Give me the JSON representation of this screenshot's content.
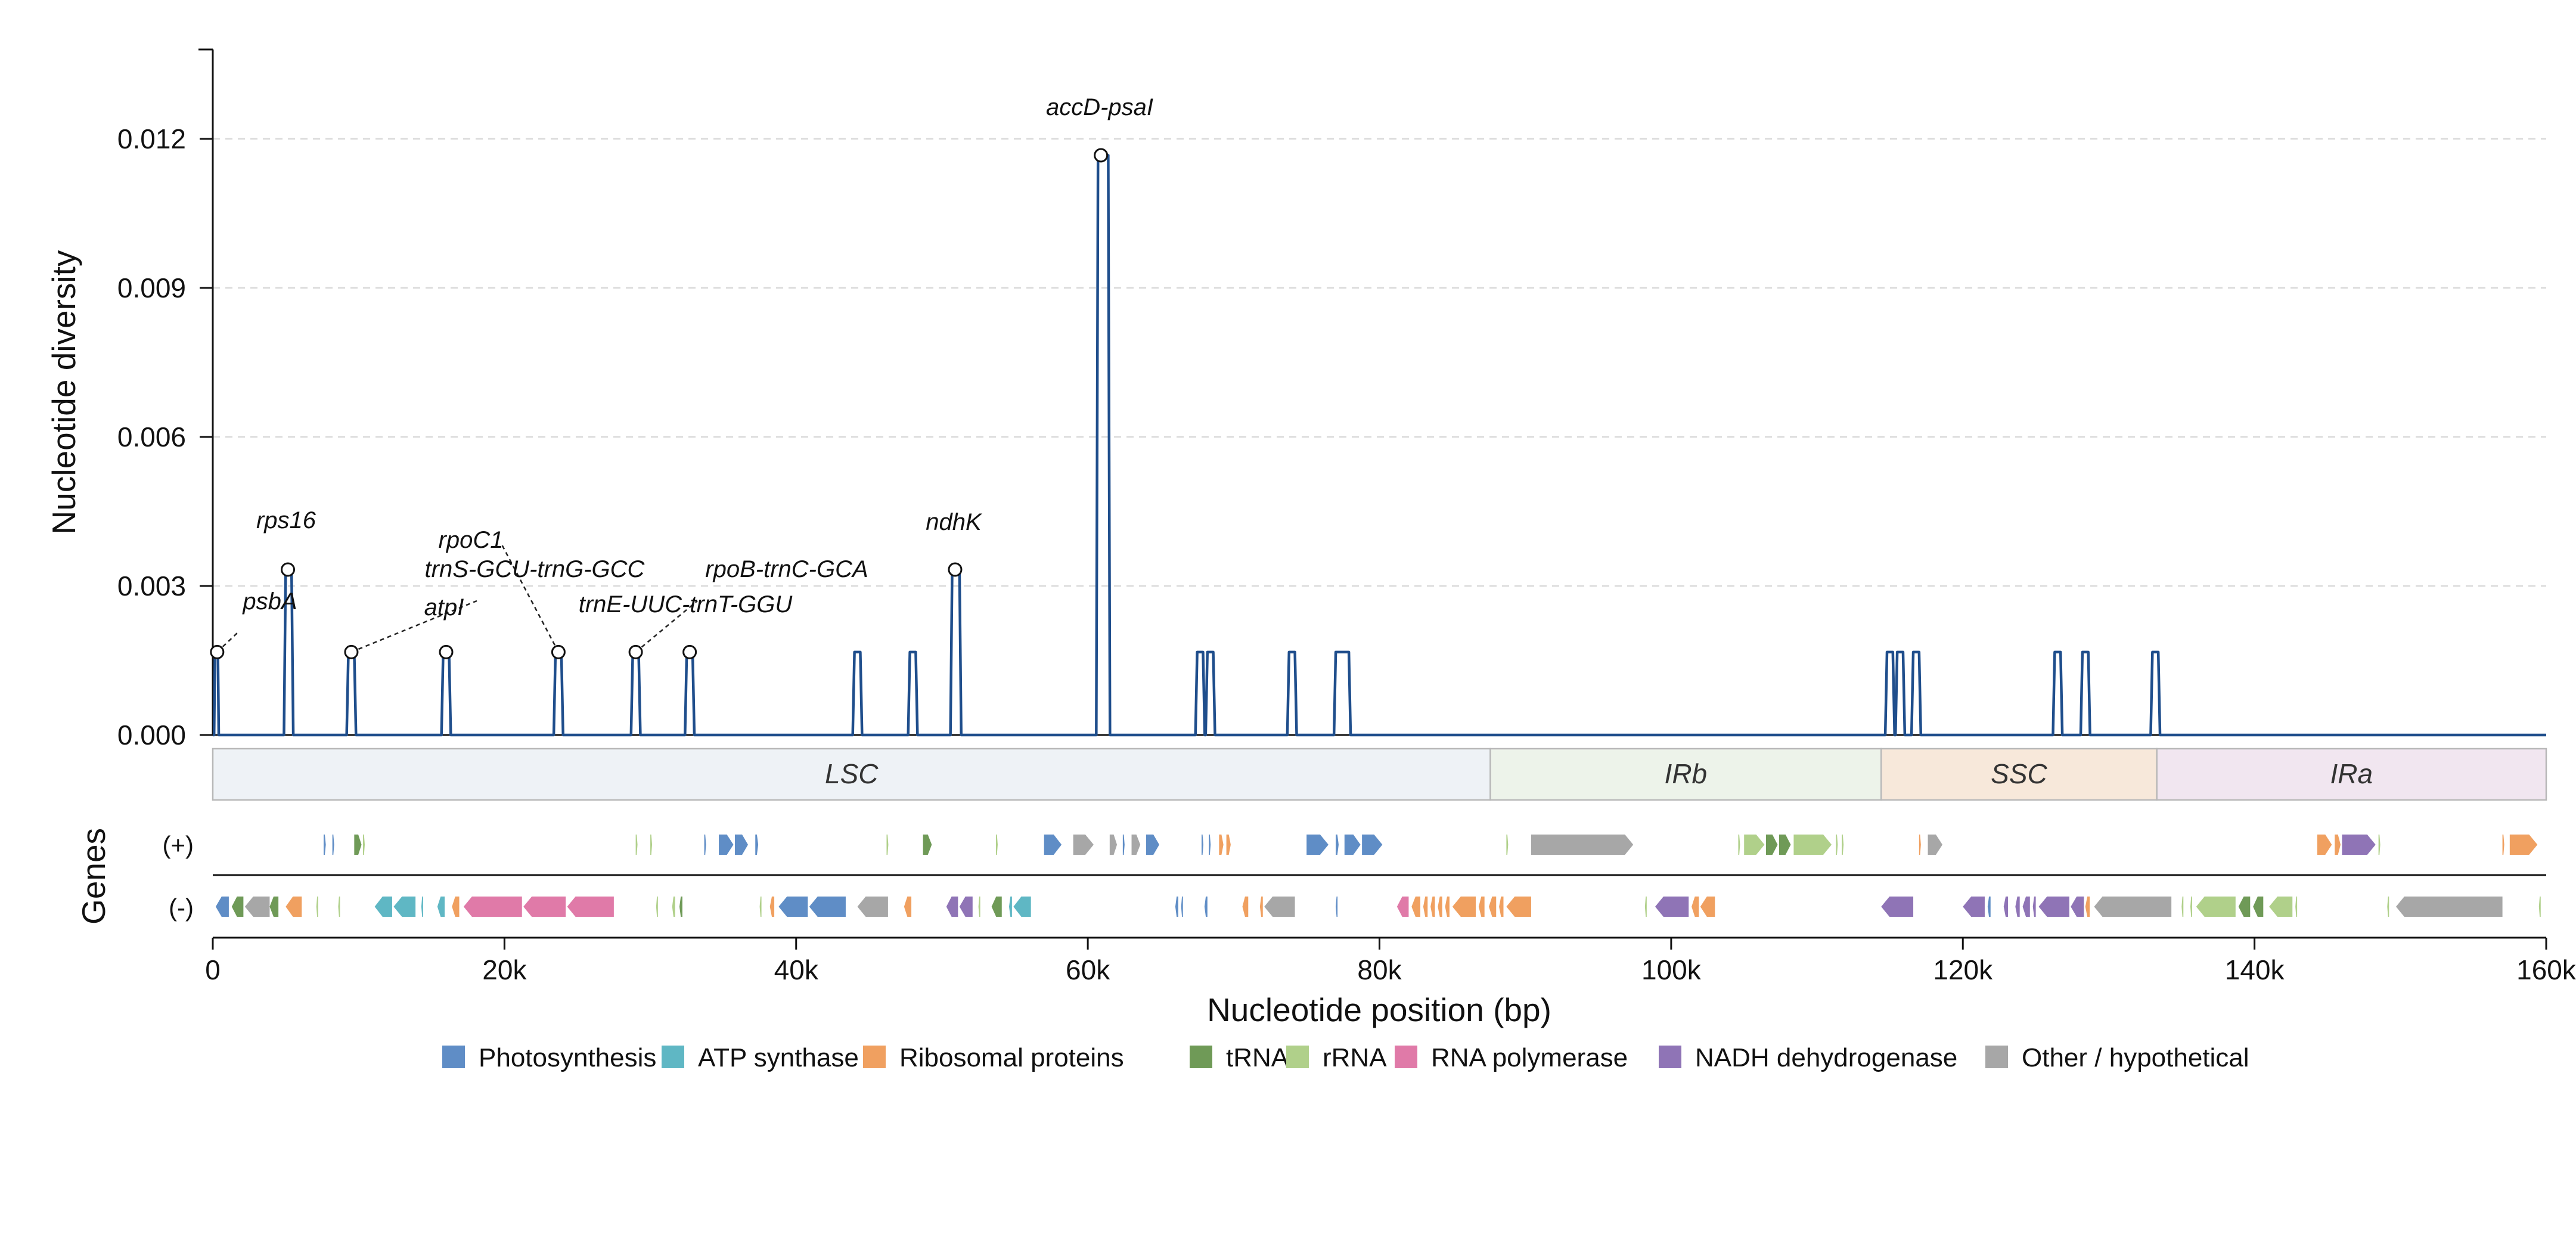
{
  "chart_data": {
    "type": "line",
    "ylabel": "Nucleotide diversity",
    "xlabel": "Nucleotide position (bp)",
    "genes_label": "Genes",
    "strand_labels": [
      "(+)",
      "(-)"
    ],
    "xlim": [
      0,
      160000
    ],
    "ylim": [
      0,
      0.0138
    ],
    "grid": "horizontal dashed",
    "x_ticks": [
      0,
      20000,
      40000,
      60000,
      80000,
      100000,
      120000,
      140000,
      160000
    ],
    "x_tick_labels": [
      "0",
      "20k",
      "40k",
      "60k",
      "80k",
      "100k",
      "120k",
      "140k",
      "160k"
    ],
    "y_ticks": [
      0,
      0.003,
      0.006,
      0.009,
      0.012
    ],
    "y_tick_labels": [
      "0.000",
      "0.003",
      "0.006",
      "0.009",
      "0.012"
    ],
    "series": [
      {
        "color": "#1f4e8c",
        "peaks": [
          {
            "start": 150,
            "end": 350,
            "value": 0.00167
          },
          {
            "start": 5000,
            "end": 5400,
            "value": 0.00333
          },
          {
            "start": 9300,
            "end": 9700,
            "value": 0.00167
          },
          {
            "start": 15800,
            "end": 16200,
            "value": 0.00167
          },
          {
            "start": 23500,
            "end": 23900,
            "value": 0.00167
          },
          {
            "start": 28800,
            "end": 29200,
            "value": 0.00167
          },
          {
            "start": 32500,
            "end": 32900,
            "value": 0.00167
          },
          {
            "start": 44000,
            "end": 44400,
            "value": 0.00167
          },
          {
            "start": 47800,
            "end": 48200,
            "value": 0.00167
          },
          {
            "start": 50700,
            "end": 51200,
            "value": 0.00333
          },
          {
            "start": 60700,
            "end": 61400,
            "value": 0.01167
          },
          {
            "start": 67500,
            "end": 67900,
            "value": 0.00167
          },
          {
            "start": 68200,
            "end": 68600,
            "value": 0.00167
          },
          {
            "start": 73800,
            "end": 74200,
            "value": 0.00167
          },
          {
            "start": 77000,
            "end": 77900,
            "value": 0.00167
          },
          {
            "start": 114800,
            "end": 115200,
            "value": 0.00167
          },
          {
            "start": 115500,
            "end": 115900,
            "value": 0.00167
          },
          {
            "start": 116600,
            "end": 117000,
            "value": 0.00167
          },
          {
            "start": 126300,
            "end": 126700,
            "value": 0.00167
          },
          {
            "start": 128200,
            "end": 128600,
            "value": 0.00167
          },
          {
            "start": 133000,
            "end": 133400,
            "value": 0.00167
          }
        ]
      }
    ],
    "annotations": [
      {
        "label": "psbA",
        "x": 300,
        "y": 0.00167,
        "italic": true
      },
      {
        "label": "rps16",
        "x": 5150,
        "y": 0.00333,
        "italic": true
      },
      {
        "label": "atpI",
        "x": 9500,
        "y": 0.00167,
        "italic": true
      },
      {
        "label": "rpoC1",
        "x": 16000,
        "y": 0.00167,
        "italic": true
      },
      {
        "label": "trnS-GCU-trnG-GCC",
        "x": 23700,
        "y": 0.00167,
        "italic": true
      },
      {
        "label": "trnE-UUC-trnT-GGU",
        "x": 29000,
        "y": 0.00167,
        "italic": true
      },
      {
        "label": "rpoB-trnC-GCA",
        "x": 32700,
        "y": 0.00167,
        "italic": true
      },
      {
        "label": "ndhK",
        "x": 50900,
        "y": 0.00333,
        "italic": true
      },
      {
        "label": "accD-psaI",
        "x": 60900,
        "y": 0.01167,
        "italic": true
      }
    ],
    "regions": [
      {
        "label": "LSC",
        "start": 0,
        "end": 87600,
        "color": "#eef2f6"
      },
      {
        "label": "IRb",
        "start": 87600,
        "end": 114400,
        "color": "#edf3ea"
      },
      {
        "label": "SSC",
        "start": 114400,
        "end": 133300,
        "color": "#f7e8da"
      },
      {
        "label": "IRa",
        "start": 133300,
        "end": 160000,
        "color": "#f1e6f0"
      }
    ],
    "gene_categories": [
      {
        "name": "Photosynthesis",
        "color": "#5f8dc6"
      },
      {
        "name": "ATP synthase",
        "color": "#5fb7c4"
      },
      {
        "name": "Ribosomal proteins",
        "color": "#f0a060"
      },
      {
        "name": "tRNA",
        "color": "#6f9a57"
      },
      {
        "name": "rRNA",
        "color": "#b0d08a"
      },
      {
        "name": "RNA polymerase",
        "color": "#e07aa8"
      },
      {
        "name": "NADH dehydrogenase",
        "color": "#8f74b6"
      },
      {
        "name": "Other / hypothetical",
        "color": "#a7a7a7"
      }
    ],
    "genes_plus": [
      {
        "start": 7600,
        "end": 7750,
        "cat": 0
      },
      {
        "start": 8200,
        "end": 8300,
        "cat": 0
      },
      {
        "start": 9700,
        "end": 10200,
        "cat": 3
      },
      {
        "start": 10300,
        "end": 10400,
        "cat": 4
      },
      {
        "start": 29000,
        "end": 29100,
        "cat": 4
      },
      {
        "start": 30000,
        "end": 30100,
        "cat": 4
      },
      {
        "start": 33700,
        "end": 33800,
        "cat": 0
      },
      {
        "start": 34700,
        "end": 35700,
        "cat": 0
      },
      {
        "start": 35800,
        "end": 36700,
        "cat": 0
      },
      {
        "start": 37200,
        "end": 37400,
        "cat": 0
      },
      {
        "start": 46200,
        "end": 46300,
        "cat": 4
      },
      {
        "start": 48700,
        "end": 49300,
        "cat": 3
      },
      {
        "start": 53700,
        "end": 53800,
        "cat": 4
      },
      {
        "start": 57000,
        "end": 58200,
        "cat": 0
      },
      {
        "start": 59000,
        "end": 60400,
        "cat": 7
      },
      {
        "start": 61500,
        "end": 62000,
        "cat": 7
      },
      {
        "start": 62400,
        "end": 62500,
        "cat": 0
      },
      {
        "start": 63000,
        "end": 63600,
        "cat": 7
      },
      {
        "start": 64000,
        "end": 64900,
        "cat": 0
      },
      {
        "start": 67800,
        "end": 67900,
        "cat": 0
      },
      {
        "start": 68300,
        "end": 68400,
        "cat": 0
      },
      {
        "start": 69000,
        "end": 69300,
        "cat": 2
      },
      {
        "start": 69500,
        "end": 69800,
        "cat": 2
      },
      {
        "start": 75000,
        "end": 76500,
        "cat": 0
      },
      {
        "start": 77000,
        "end": 77200,
        "cat": 0
      },
      {
        "start": 77600,
        "end": 78700,
        "cat": 0
      },
      {
        "start": 78800,
        "end": 80200,
        "cat": 0
      },
      {
        "start": 88700,
        "end": 88800,
        "cat": 4
      },
      {
        "start": 90400,
        "end": 97400,
        "cat": 7
      },
      {
        "start": 104600,
        "end": 104700,
        "cat": 4
      },
      {
        "start": 105000,
        "end": 106400,
        "cat": 4
      },
      {
        "start": 106500,
        "end": 107300,
        "cat": 3
      },
      {
        "start": 107400,
        "end": 108200,
        "cat": 3
      },
      {
        "start": 108400,
        "end": 111000,
        "cat": 4
      },
      {
        "start": 111300,
        "end": 111400,
        "cat": 4
      },
      {
        "start": 111700,
        "end": 111800,
        "cat": 4
      },
      {
        "start": 117000,
        "end": 117100,
        "cat": 2
      },
      {
        "start": 117600,
        "end": 118600,
        "cat": 7
      },
      {
        "start": 144300,
        "end": 145300,
        "cat": 2
      },
      {
        "start": 145500,
        "end": 145900,
        "cat": 2
      },
      {
        "start": 146000,
        "end": 148300,
        "cat": 6
      },
      {
        "start": 148500,
        "end": 148600,
        "cat": 4
      },
      {
        "start": 157000,
        "end": 157100,
        "cat": 2
      },
      {
        "start": 157500,
        "end": 159400,
        "cat": 2
      }
    ],
    "genes_minus": [
      {
        "start": 200,
        "end": 1100,
        "cat": 0
      },
      {
        "start": 1300,
        "end": 2100,
        "cat": 3
      },
      {
        "start": 2200,
        "end": 3900,
        "cat": 7
      },
      {
        "start": 3900,
        "end": 4500,
        "cat": 3
      },
      {
        "start": 5000,
        "end": 6100,
        "cat": 2
      },
      {
        "start": 7100,
        "end": 7200,
        "cat": 4
      },
      {
        "start": 8600,
        "end": 8700,
        "cat": 4
      },
      {
        "start": 11100,
        "end": 12300,
        "cat": 1
      },
      {
        "start": 12400,
        "end": 13900,
        "cat": 1
      },
      {
        "start": 14300,
        "end": 14400,
        "cat": 1
      },
      {
        "start": 15400,
        "end": 15900,
        "cat": 1
      },
      {
        "start": 16400,
        "end": 16900,
        "cat": 2
      },
      {
        "start": 17200,
        "end": 21200,
        "cat": 5
      },
      {
        "start": 21300,
        "end": 24200,
        "cat": 5
      },
      {
        "start": 24300,
        "end": 27500,
        "cat": 5
      },
      {
        "start": 30400,
        "end": 30500,
        "cat": 4
      },
      {
        "start": 31500,
        "end": 31700,
        "cat": 4
      },
      {
        "start": 32000,
        "end": 32200,
        "cat": 3
      },
      {
        "start": 37500,
        "end": 37600,
        "cat": 4
      },
      {
        "start": 38200,
        "end": 38500,
        "cat": 2
      },
      {
        "start": 38800,
        "end": 40800,
        "cat": 0
      },
      {
        "start": 40900,
        "end": 43400,
        "cat": 0
      },
      {
        "start": 44200,
        "end": 46300,
        "cat": 7
      },
      {
        "start": 47400,
        "end": 47900,
        "cat": 2
      },
      {
        "start": 50300,
        "end": 51100,
        "cat": 6
      },
      {
        "start": 51200,
        "end": 52100,
        "cat": 6
      },
      {
        "start": 52500,
        "end": 52600,
        "cat": 4
      },
      {
        "start": 53400,
        "end": 54100,
        "cat": 3
      },
      {
        "start": 54600,
        "end": 54800,
        "cat": 1
      },
      {
        "start": 54900,
        "end": 56100,
        "cat": 1
      },
      {
        "start": 66000,
        "end": 66200,
        "cat": 0
      },
      {
        "start": 66400,
        "end": 66500,
        "cat": 0
      },
      {
        "start": 68000,
        "end": 68200,
        "cat": 0
      },
      {
        "start": 70600,
        "end": 71000,
        "cat": 2
      },
      {
        "start": 71800,
        "end": 72000,
        "cat": 2
      },
      {
        "start": 72100,
        "end": 74200,
        "cat": 7
      },
      {
        "start": 77000,
        "end": 77100,
        "cat": 0
      },
      {
        "start": 81200,
        "end": 82000,
        "cat": 5
      },
      {
        "start": 82200,
        "end": 82800,
        "cat": 2
      },
      {
        "start": 83000,
        "end": 83300,
        "cat": 2
      },
      {
        "start": 83500,
        "end": 83800,
        "cat": 2
      },
      {
        "start": 84000,
        "end": 84300,
        "cat": 2
      },
      {
        "start": 84500,
        "end": 84800,
        "cat": 2
      },
      {
        "start": 85000,
        "end": 86600,
        "cat": 2
      },
      {
        "start": 86800,
        "end": 87200,
        "cat": 2
      },
      {
        "start": 87500,
        "end": 88000,
        "cat": 2
      },
      {
        "start": 88200,
        "end": 88500,
        "cat": 2
      },
      {
        "start": 88700,
        "end": 90400,
        "cat": 2
      },
      {
        "start": 98200,
        "end": 98300,
        "cat": 4
      },
      {
        "start": 98900,
        "end": 101200,
        "cat": 6
      },
      {
        "start": 101400,
        "end": 101900,
        "cat": 2
      },
      {
        "start": 102000,
        "end": 103000,
        "cat": 2
      },
      {
        "start": 114400,
        "end": 116600,
        "cat": 6
      },
      {
        "start": 120000,
        "end": 121500,
        "cat": 6
      },
      {
        "start": 121700,
        "end": 121900,
        "cat": 0
      },
      {
        "start": 122800,
        "end": 123100,
        "cat": 6
      },
      {
        "start": 123600,
        "end": 123900,
        "cat": 6
      },
      {
        "start": 124100,
        "end": 124600,
        "cat": 6
      },
      {
        "start": 124800,
        "end": 125000,
        "cat": 6
      },
      {
        "start": 125200,
        "end": 127300,
        "cat": 6
      },
      {
        "start": 127400,
        "end": 128300,
        "cat": 6
      },
      {
        "start": 128400,
        "end": 128700,
        "cat": 2
      },
      {
        "start": 129000,
        "end": 134300,
        "cat": 7
      },
      {
        "start": 135000,
        "end": 135100,
        "cat": 4
      },
      {
        "start": 135600,
        "end": 135700,
        "cat": 4
      },
      {
        "start": 136000,
        "end": 138700,
        "cat": 4
      },
      {
        "start": 138900,
        "end": 139700,
        "cat": 3
      },
      {
        "start": 139900,
        "end": 140600,
        "cat": 3
      },
      {
        "start": 141000,
        "end": 142600,
        "cat": 4
      },
      {
        "start": 142800,
        "end": 142900,
        "cat": 4
      },
      {
        "start": 149100,
        "end": 149200,
        "cat": 4
      },
      {
        "start": 149700,
        "end": 157000,
        "cat": 7
      },
      {
        "start": 159500,
        "end": 159600,
        "cat": 4
      }
    ]
  }
}
